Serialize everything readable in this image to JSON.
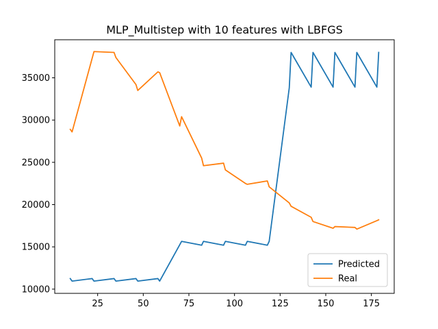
{
  "chart_data": {
    "type": "line",
    "title": "MLP_Multistep with 10 features with LBFGS",
    "xlabel": "",
    "ylabel": "",
    "xlim": [
      1.5,
      187.5
    ],
    "ylim": [
      9500,
      39500
    ],
    "xticks": [
      25,
      50,
      75,
      100,
      125,
      150,
      175
    ],
    "yticks": [
      10000,
      15000,
      20000,
      25000,
      30000,
      35000
    ],
    "grid": false,
    "legend_position": "lower-right",
    "series": [
      {
        "name": "Predicted",
        "color": "#1f77b4",
        "x": [
          10,
          11,
          22,
          23,
          34,
          35,
          46,
          47,
          58,
          59,
          71,
          82,
          83,
          94,
          95,
          106,
          107,
          118,
          119,
          130,
          131,
          142,
          143,
          154,
          155,
          166,
          167,
          178,
          179
        ],
        "y": [
          11250,
          10950,
          11250,
          10950,
          11250,
          10950,
          11250,
          10950,
          11250,
          10950,
          15650,
          15200,
          15650,
          15200,
          15650,
          15200,
          15650,
          15200,
          15650,
          33800,
          38000,
          33900,
          38000,
          33900,
          38000,
          33900,
          38000,
          33900,
          38000
        ]
      },
      {
        "name": "Real",
        "color": "#ff7f0e",
        "x": [
          10,
          11,
          23,
          34,
          35,
          46,
          47,
          58,
          59,
          70,
          71,
          82,
          83,
          94,
          95,
          106,
          107,
          118,
          119,
          130,
          131,
          142,
          143,
          154,
          155,
          166,
          167,
          178,
          179
        ],
        "y": [
          28900,
          28600,
          38100,
          38000,
          37400,
          34200,
          33500,
          35700,
          35600,
          29300,
          30400,
          25500,
          24600,
          24900,
          24100,
          22500,
          22400,
          22800,
          22100,
          20200,
          19800,
          18500,
          18000,
          17200,
          17400,
          17300,
          17100,
          18100,
          18200
        ]
      }
    ]
  }
}
